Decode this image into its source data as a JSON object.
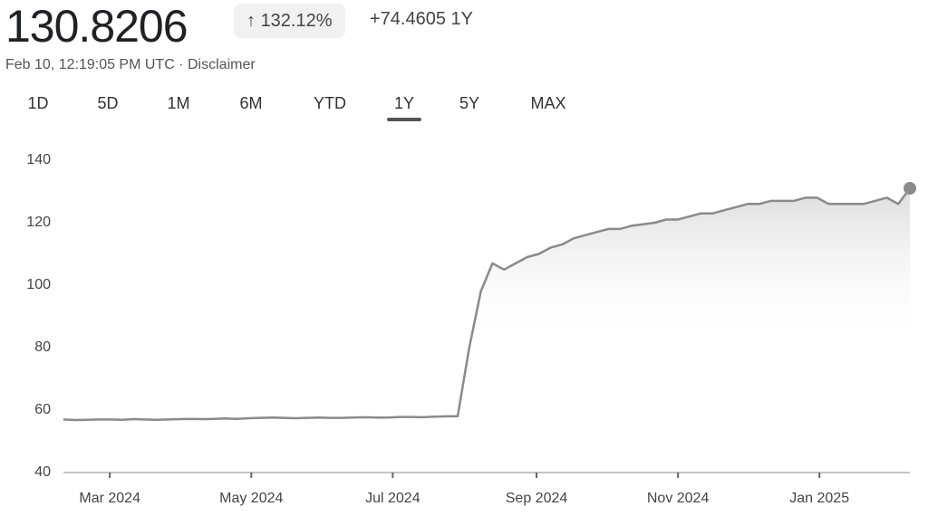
{
  "header": {
    "price": "130.8206",
    "change_percent": "132.12%",
    "change_value": "+74.4605",
    "change_period": "1Y",
    "timestamp": "Feb 10, 12:19:05 PM UTC",
    "separator": "·",
    "disclaimer": "Disclaimer"
  },
  "ranges": {
    "items": [
      "1D",
      "5D",
      "1M",
      "6M",
      "YTD",
      "1Y",
      "5Y",
      "MAX"
    ],
    "selected": 5
  },
  "chart_data": {
    "type": "line",
    "color": "#8a8a8a",
    "values": [
      57,
      56.8,
      56.9,
      57,
      57,
      56.9,
      57.1,
      57,
      56.9,
      57,
      57.1,
      57.2,
      57.1,
      57.2,
      57.3,
      57.2,
      57.4,
      57.5,
      57.6,
      57.5,
      57.4,
      57.5,
      57.6,
      57.5,
      57.5,
      57.6,
      57.7,
      57.6,
      57.6,
      57.8,
      57.8,
      57.7,
      57.9,
      58,
      58,
      80,
      98,
      107,
      105,
      107,
      109,
      110,
      112,
      113,
      115,
      116,
      117,
      118,
      118,
      119,
      119.5,
      120,
      121,
      121,
      122,
      123,
      123,
      124,
      125,
      126,
      126,
      127,
      127,
      127,
      128,
      128,
      126,
      126,
      126,
      126,
      127,
      128,
      126,
      131
    ],
    "xlim": [
      0,
      73
    ],
    "xticks": [
      {
        "value": 4.0,
        "label": "Mar 2024"
      },
      {
        "value": 16.2,
        "label": "May 2024"
      },
      {
        "value": 28.4,
        "label": "Jul 2024"
      },
      {
        "value": 40.8,
        "label": "Sep 2024"
      },
      {
        "value": 53.0,
        "label": "Nov 2024"
      },
      {
        "value": 65.2,
        "label": "Jan 2025"
      }
    ],
    "ylim": [
      40,
      140
    ],
    "yticks": [
      40,
      60,
      80,
      100,
      120,
      140
    ],
    "grid": false
  }
}
